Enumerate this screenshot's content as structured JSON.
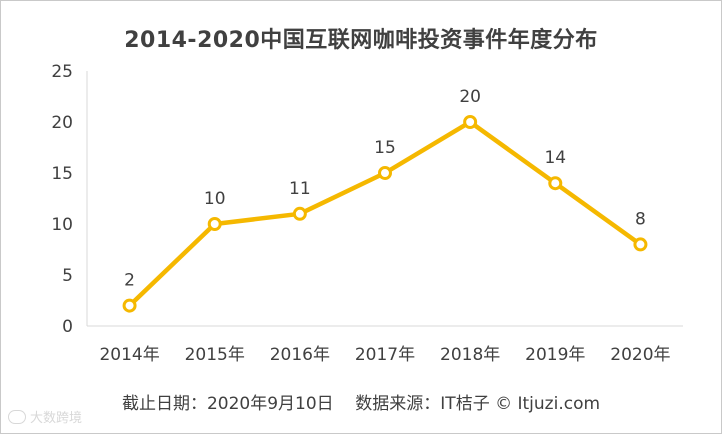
{
  "chart_data": {
    "type": "line",
    "title": "2014-2020中国互联网咖啡投资事件年度分布",
    "categories": [
      "2014年",
      "2015年",
      "2016年",
      "2017年",
      "2018年",
      "2019年",
      "2020年"
    ],
    "series": [
      {
        "values": [
          2,
          10,
          11,
          15,
          20,
          14,
          8
        ],
        "color": "#f5b800"
      }
    ],
    "ylim": [
      0,
      25
    ],
    "yticks": [
      0,
      5,
      10,
      15,
      20,
      25
    ],
    "data_labels": true,
    "grid": false,
    "legend": "none"
  },
  "footer": {
    "date_text": "截止日期：2020年9月10日",
    "source_text": "数据来源：IT桔子 © Itjuzi.com"
  },
  "watermark": {
    "text": "大数跨境",
    "icon": "watermark-logo-icon"
  },
  "colors": {
    "line": "#f5b800",
    "text": "#404040",
    "axis": "#d9d9d9"
  }
}
